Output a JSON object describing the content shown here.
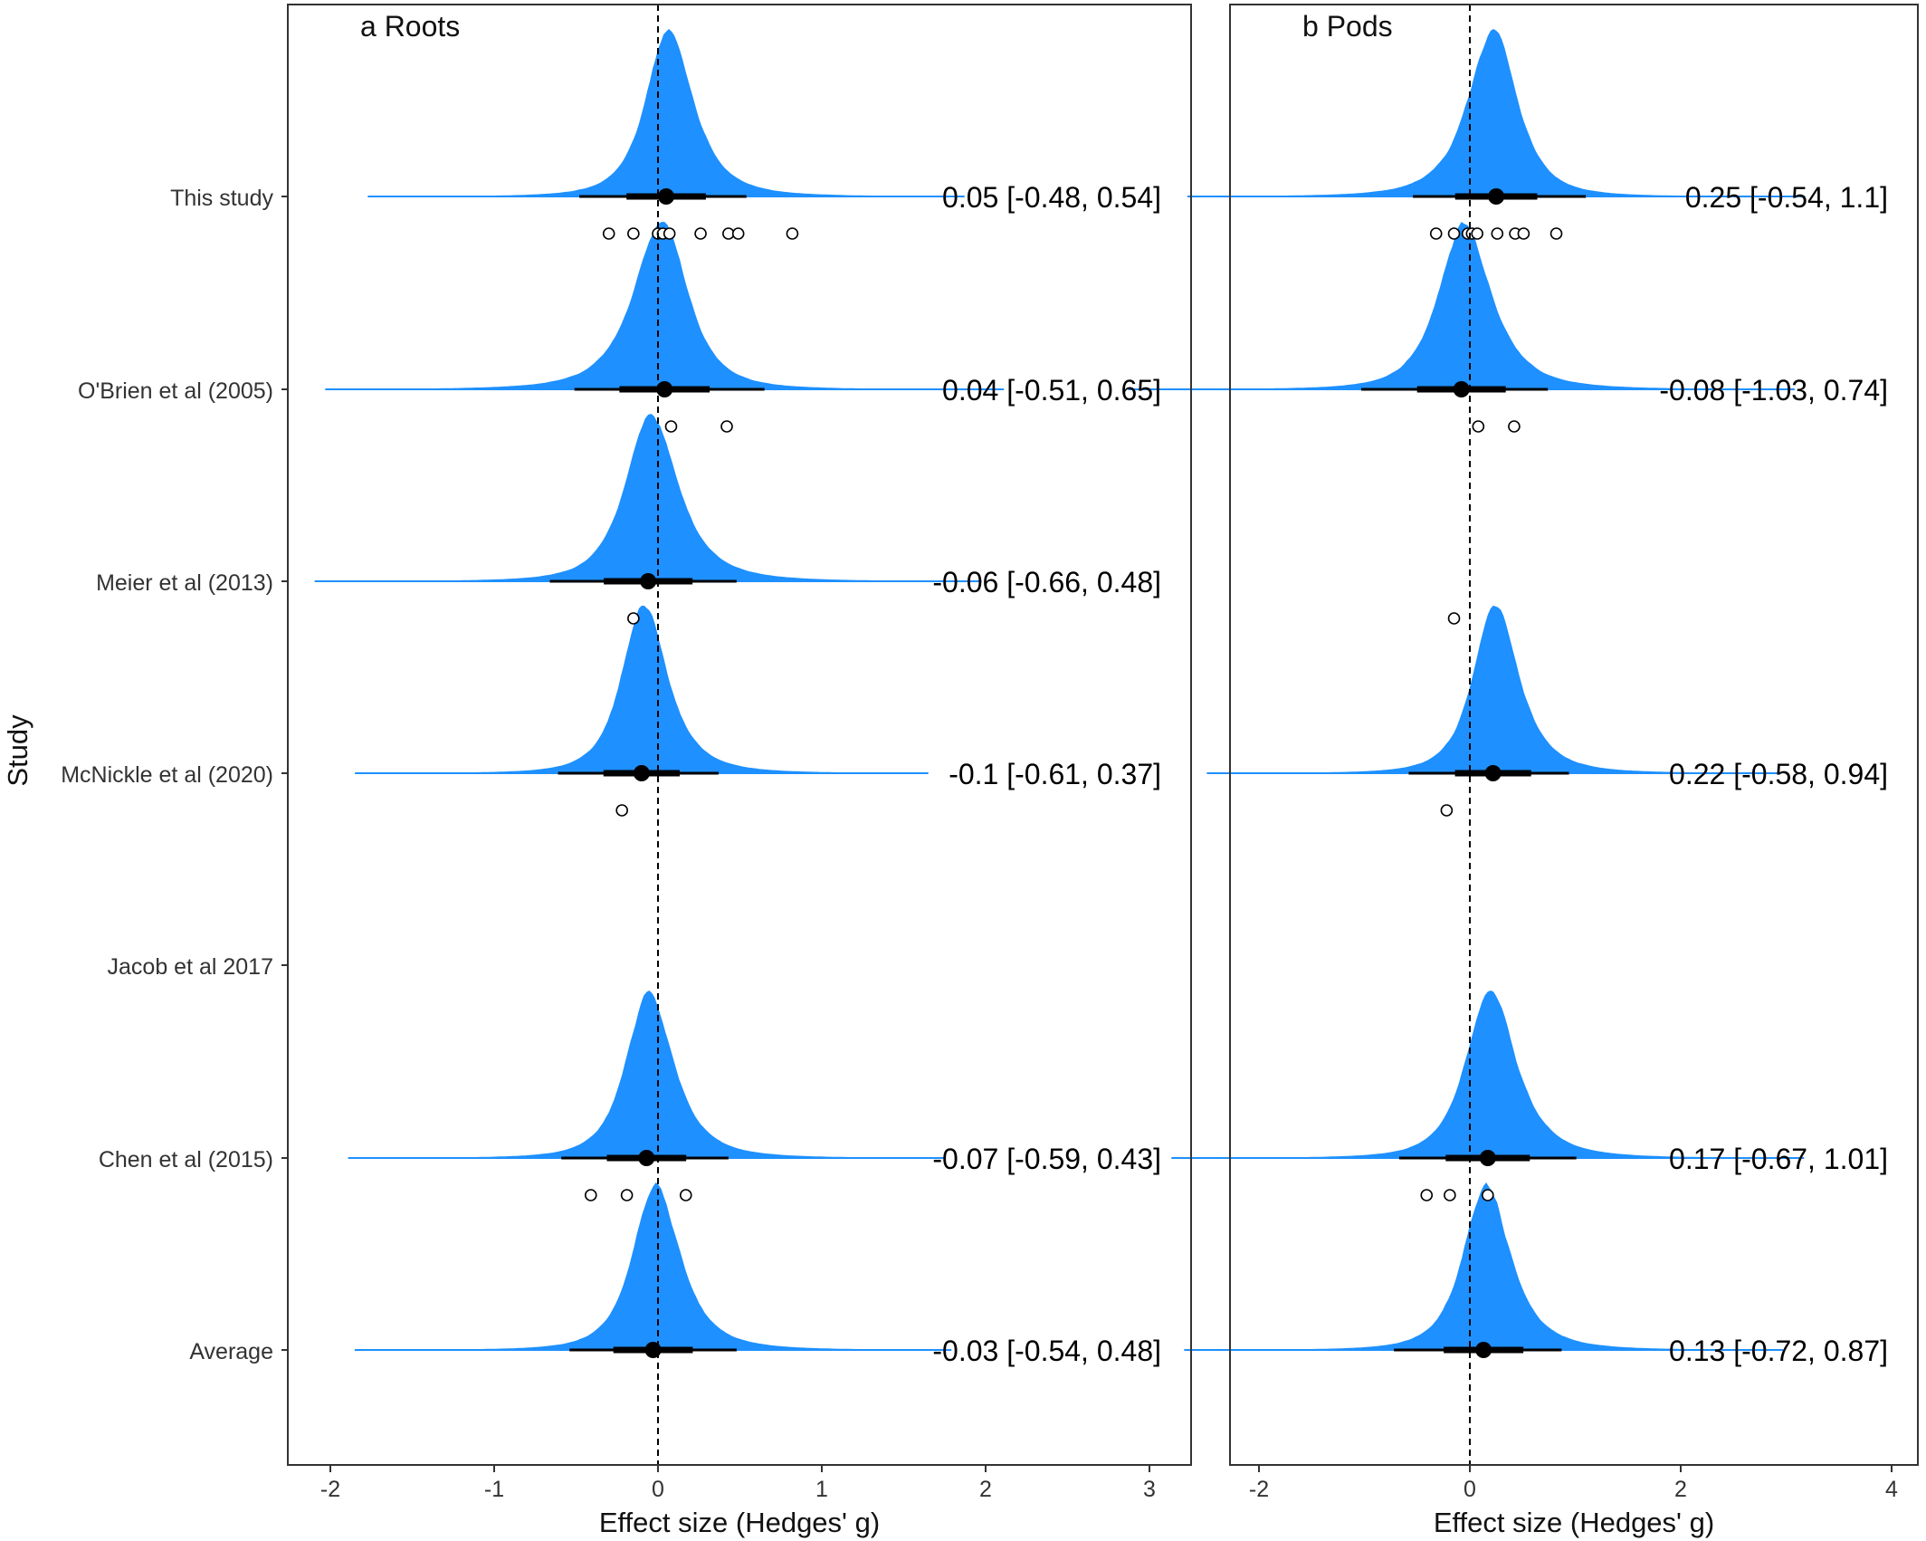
{
  "figure": {
    "ylabel": "Study",
    "studies": [
      "This study",
      "O'Brien et al  (2005)",
      "Meier et al  (2013)",
      "McNickle et al  (2020)",
      "Jacob et al 2017",
      "Chen et al  (2015)",
      "Average"
    ]
  },
  "chart_data": [
    {
      "type": "forest-density",
      "panel_letter": "a",
      "title": "Roots",
      "xlabel": "Effect size (Hedges' g)",
      "xlim": [
        -2.5,
        3
      ],
      "xticks": [
        -2,
        -1,
        0,
        1,
        2,
        3
      ],
      "reference_line": 0,
      "grid": false,
      "color": "#1E90FF",
      "studies": [
        {
          "name": "This study",
          "mean": 0.05,
          "lower": -0.48,
          "upper": 0.54,
          "label": "0.05 [-0.48, 0.54]",
          "observations": [
            -0.3,
            -0.15,
            0.0,
            0.03,
            0.07,
            0.26,
            0.43,
            0.49,
            0.82
          ]
        },
        {
          "name": "O'Brien et al  (2005)",
          "mean": 0.04,
          "lower": -0.51,
          "upper": 0.65,
          "label": "0.04 [-0.51, 0.65]",
          "observations": [
            0.08,
            0.42
          ]
        },
        {
          "name": "Meier et al  (2013)",
          "mean": -0.06,
          "lower": -0.66,
          "upper": 0.48,
          "label": "-0.06 [-0.66, 0.48]",
          "observations": [
            -0.15
          ]
        },
        {
          "name": "McNickle et al  (2020)",
          "mean": -0.1,
          "lower": -0.61,
          "upper": 0.37,
          "label": "-0.1 [-0.61, 0.37]",
          "observations": [
            -0.22
          ]
        },
        {
          "name": "Jacob et al 2017",
          "mean": null,
          "lower": null,
          "upper": null,
          "label": "",
          "observations": []
        },
        {
          "name": "Chen et al  (2015)",
          "mean": -0.07,
          "lower": -0.59,
          "upper": 0.43,
          "label": "-0.07 [-0.59, 0.43]",
          "observations": [
            -0.41,
            -0.19,
            0.17
          ]
        },
        {
          "name": "Average",
          "mean": -0.03,
          "lower": -0.54,
          "upper": 0.48,
          "label": "-0.03 [-0.54, 0.48]",
          "observations": []
        }
      ]
    },
    {
      "type": "forest-density",
      "panel_letter": "b",
      "title": "Pods",
      "xlabel": "Effect size (Hedges' g)",
      "xlim": [
        -2.2,
        4.1
      ],
      "xticks": [
        -2,
        0,
        2,
        4
      ],
      "reference_line": 0,
      "grid": false,
      "color": "#1E90FF",
      "studies": [
        {
          "name": "This study",
          "mean": 0.25,
          "lower": -0.54,
          "upper": 1.1,
          "label": "0.25 [-0.54, 1.1]",
          "observations": [
            -0.32,
            -0.15,
            -0.02,
            0.02,
            0.07,
            0.26,
            0.43,
            0.51,
            0.82
          ]
        },
        {
          "name": "O'Brien et al  (2005)",
          "mean": -0.08,
          "lower": -1.03,
          "upper": 0.74,
          "label": "-0.08 [-1.03, 0.74]",
          "observations": [
            0.08,
            0.42
          ]
        },
        {
          "name": "Meier et al  (2013)",
          "mean": null,
          "lower": null,
          "upper": null,
          "label": "",
          "observations": [
            -0.15
          ]
        },
        {
          "name": "McNickle et al  (2020)",
          "mean": 0.22,
          "lower": -0.58,
          "upper": 0.94,
          "label": "0.22 [-0.58, 0.94]",
          "observations": [
            -0.22
          ]
        },
        {
          "name": "Jacob et al 2017",
          "mean": null,
          "lower": null,
          "upper": null,
          "label": "",
          "observations": []
        },
        {
          "name": "Chen et al  (2015)",
          "mean": 0.17,
          "lower": -0.67,
          "upper": 1.01,
          "label": "0.17 [-0.67, 1.01]",
          "observations": [
            -0.41,
            -0.19,
            0.17
          ]
        },
        {
          "name": "Average",
          "mean": 0.13,
          "lower": -0.72,
          "upper": 0.87,
          "label": "0.13 [-0.72, 0.87]",
          "observations": []
        }
      ]
    }
  ]
}
